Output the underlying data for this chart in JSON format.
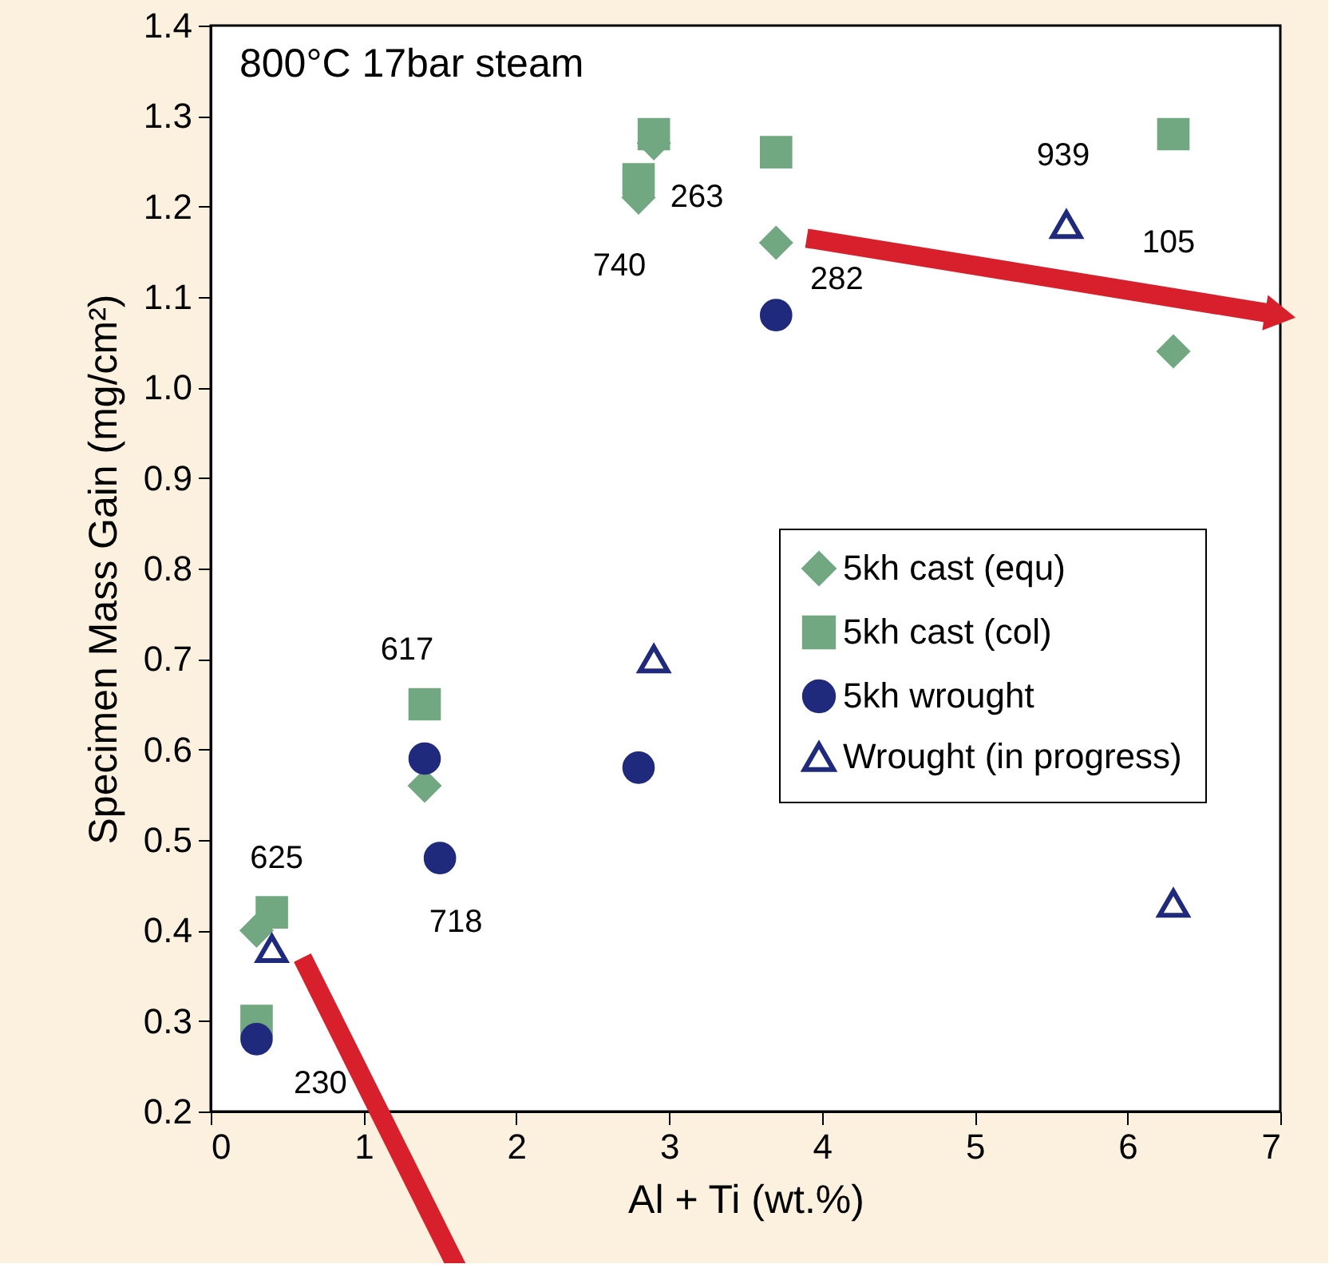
{
  "chart_data": {
    "type": "scatter",
    "xlabel": "Al + Ti (wt.%)",
    "ylabel": "Specimen Mass Gain (mg/cm²)",
    "xlim": [
      0,
      7
    ],
    "ylim": [
      0.2,
      1.4
    ],
    "xticks": [
      0,
      1,
      2,
      3,
      4,
      5,
      6,
      7
    ],
    "yticks": [
      0.2,
      0.3,
      0.4,
      0.5,
      0.6,
      0.7,
      0.8,
      0.9,
      {
        "value": 1,
        "label": "1.0"
      },
      1.1,
      1.2,
      1.3,
      1.4
    ],
    "grid": false,
    "legend": "right",
    "series": [
      {
        "name": "5kh cast (equ)",
        "color": "#72a881",
        "marker": "diamond",
        "x": [
          0.3,
          1.4,
          2.8,
          2.9,
          3.7,
          6.3
        ],
        "values": [
          0.4,
          0.56,
          1.21,
          1.27,
          1.16,
          1.04
        ]
      },
      {
        "name": "5kh cast (col)",
        "color": "#72a881",
        "marker": "square",
        "x": [
          0.4,
          0.3,
          1.4,
          2.8,
          2.9,
          3.7,
          6.3
        ],
        "values": [
          0.42,
          0.3,
          0.65,
          1.23,
          1.28,
          1.26,
          1.28
        ]
      },
      {
        "name": "5kh wrought",
        "color": "#1f2a7c",
        "marker": "circle",
        "x": [
          0.3,
          1.4,
          1.5,
          2.8,
          3.7
        ],
        "values": [
          0.28,
          0.59,
          0.48,
          0.58,
          1.08
        ]
      },
      {
        "name": "Wrought (in progress)",
        "color": "#1f2a7c",
        "marker": "triangle",
        "x": [
          0.4,
          2.9,
          5.6,
          6.3
        ],
        "values": [
          0.38,
          0.7,
          1.18,
          0.43
        ]
      }
    ],
    "annotations": [
      "800°C 17bar steam",
      {
        "text": "625",
        "x": 0.4,
        "y": 0.42
      },
      {
        "text": "230",
        "x": 0.3,
        "y": 0.28
      },
      {
        "text": "617",
        "x": 1.4,
        "y": 0.65
      },
      {
        "text": "718",
        "x": 1.5,
        "y": 0.48
      },
      {
        "text": "740",
        "x": 2.8,
        "y": 1.21
      },
      {
        "text": "263",
        "x": 2.9,
        "y": 1.27
      },
      {
        "text": "282",
        "x": 3.7,
        "y": 1.16
      },
      {
        "text": "939",
        "x": 5.6,
        "y": 1.18
      },
      {
        "text": "105",
        "x": 6.3,
        "y": 1.28
      }
    ]
  }
}
